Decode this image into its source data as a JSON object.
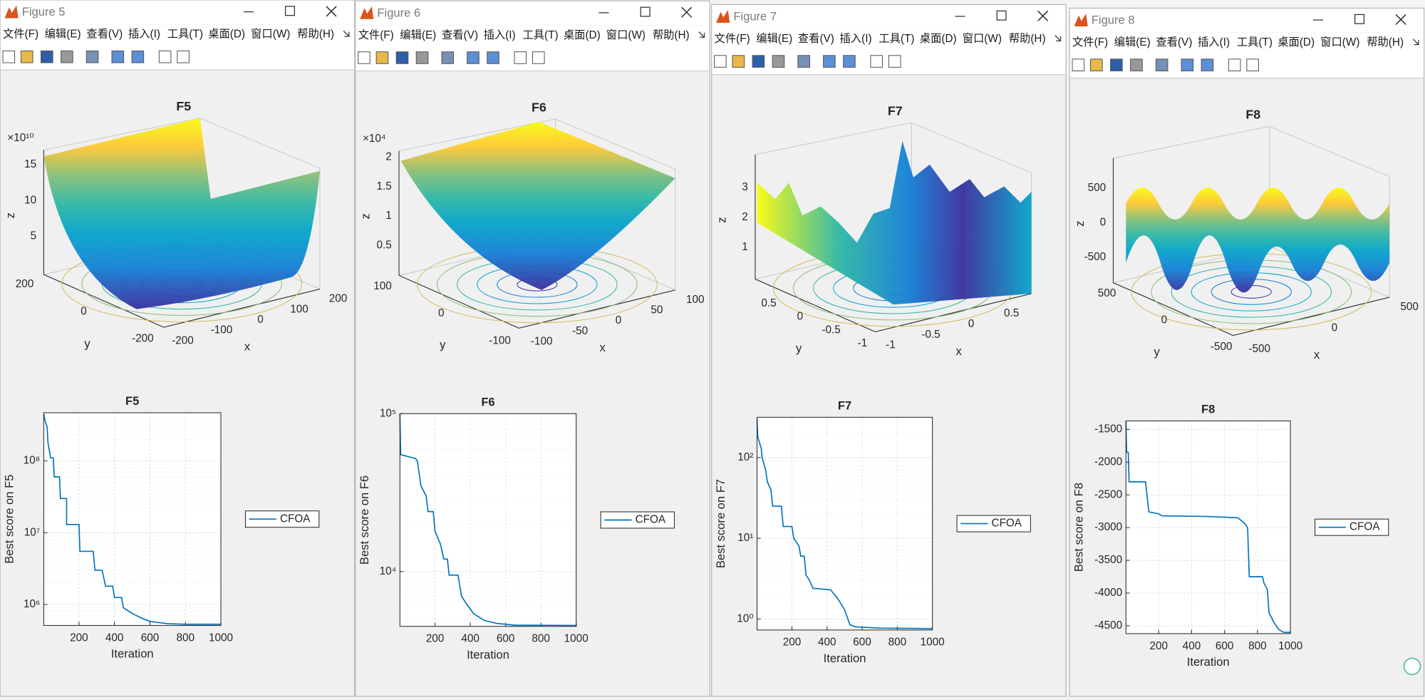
{
  "windows": [
    {
      "title": "Figure 5",
      "menu": [
        "文件(F)",
        "编辑(E)",
        "查看(V)",
        "插入(I)",
        "工具(T)",
        "桌面(D)",
        "窗口(W)",
        "帮助(H)"
      ],
      "surface": {
        "title": "F5",
        "multiplier": "×10¹⁰",
        "xlabel": "x",
        "ylabel": "y",
        "zlabel": "z",
        "xticks": [
          -200,
          -100,
          0,
          100,
          200
        ],
        "yticks": [
          -200,
          0,
          200
        ],
        "zticks": [
          5,
          10,
          15
        ]
      },
      "convergence": {
        "type": "line",
        "title": "F5",
        "xlabel": "Iteration",
        "ylabel": "Best score on F5",
        "log_y": true,
        "grid": true,
        "x": [
          1,
          10,
          20,
          25,
          40,
          55,
          60,
          90,
          95,
          130,
          130,
          200,
          205,
          280,
          290,
          330,
          350,
          390,
          400,
          440,
          450,
          500,
          550,
          600,
          700,
          800,
          1000
        ],
        "series": [
          {
            "name": "CFOA",
            "color": "#0072bd",
            "values": [
              450000000,
              350000000,
              300000000,
              180000000,
              110000000,
              110000000,
              60000000,
              60000000,
              30000000,
              30000000,
              13000000,
              13000000,
              5500000,
              5500000,
              3000000,
              3000000,
              1800000,
              1800000,
              1250000,
              1250000,
              900000,
              750000,
              650000,
              580000,
              540000,
              530000,
              530000
            ]
          }
        ],
        "xlim": [
          1,
          1000
        ],
        "ylim": [
          510000,
          470000000
        ],
        "xticks": [
          200,
          400,
          600,
          800,
          1000
        ],
        "yticks": [
          {
            "value": 1000000,
            "label": "10⁶"
          },
          {
            "value": 10000000,
            "label": "10⁷"
          },
          {
            "value": 100000000,
            "label": "10⁸"
          }
        ]
      }
    },
    {
      "title": "Figure 6",
      "menu": [
        "文件(F)",
        "编辑(E)",
        "查看(V)",
        "插入(I)",
        "工具(T)",
        "桌面(D)",
        "窗口(W)",
        "帮助(H)"
      ],
      "surface": {
        "title": "F6",
        "multiplier": "×10⁴",
        "xlabel": "x",
        "ylabel": "y",
        "zlabel": "z",
        "xticks": [
          -100,
          -50,
          0,
          50,
          100
        ],
        "yticks": [
          -100,
          0,
          100
        ],
        "zticks": [
          0.5,
          1,
          1.5,
          2
        ]
      },
      "convergence": {
        "type": "line",
        "title": "F6",
        "xlabel": "Iteration",
        "ylabel": "Best score on F6",
        "log_y": true,
        "grid": true,
        "x": [
          1,
          5,
          90,
          100,
          120,
          150,
          160,
          190,
          200,
          230,
          250,
          270,
          280,
          330,
          350,
          380,
          420,
          480,
          550,
          650,
          1000
        ],
        "series": [
          {
            "name": "CFOA",
            "color": "#0072bd",
            "values": [
              100000,
              55000,
              52000,
              50000,
              35000,
              30000,
              24000,
              24000,
              18000,
              15000,
              12000,
              12000,
              9500,
              9500,
              7000,
              6200,
              5400,
              4900,
              4700,
              4580,
              4560
            ]
          }
        ],
        "xlim": [
          1,
          1000
        ],
        "ylim": [
          4500,
          100000
        ],
        "xticks": [
          200,
          400,
          600,
          800,
          1000
        ],
        "yticks": [
          {
            "value": 10000,
            "label": "10⁴"
          },
          {
            "value": 100000,
            "label": "10⁵"
          }
        ]
      }
    },
    {
      "title": "Figure 7",
      "menu": [
        "文件(F)",
        "编辑(E)",
        "查看(V)",
        "插入(I)",
        "工具(T)",
        "桌面(D)",
        "窗口(W)",
        "帮助(H)"
      ],
      "surface": {
        "title": "F7",
        "xlabel": "x",
        "ylabel": "y",
        "zlabel": "z",
        "xticks": [
          -1,
          -0.5,
          0,
          0.5
        ],
        "yticks": [
          -1,
          -0.5,
          0,
          0.5
        ],
        "zticks": [
          1,
          2,
          3
        ]
      },
      "convergence": {
        "type": "line",
        "title": "F7",
        "xlabel": "Iteration",
        "ylabel": "Best score on F7",
        "log_y": true,
        "grid": true,
        "x": [
          1,
          5,
          25,
          30,
          50,
          60,
          80,
          90,
          140,
          150,
          200,
          210,
          240,
          250,
          270,
          280,
          300,
          320,
          420,
          460,
          500,
          530,
          560,
          700,
          1000
        ],
        "series": [
          {
            "name": "CFOA",
            "color": "#0072bd",
            "values": [
              300,
              180,
              130,
              100,
              70,
              50,
              40,
              25,
              25,
              14,
              14,
              10,
              8,
              6,
              6,
              3.5,
              3,
              2.4,
              2.3,
              1.8,
              1.3,
              0.85,
              0.8,
              0.77,
              0.76
            ]
          }
        ],
        "xlim": [
          1,
          1000
        ],
        "ylim": [
          0.73,
          316
        ],
        "xticks": [
          200,
          400,
          600,
          800,
          1000
        ],
        "yticks": [
          {
            "value": 1,
            "label": "10⁰"
          },
          {
            "value": 10,
            "label": "10¹"
          },
          {
            "value": 100,
            "label": "10²"
          }
        ]
      }
    },
    {
      "title": "Figure 8",
      "menu": [
        "文件(F)",
        "编辑(E)",
        "查看(V)",
        "插入(I)",
        "工具(T)",
        "桌面(D)",
        "窗口(W)",
        "帮助(H)"
      ],
      "surface": {
        "title": "F8",
        "xlabel": "x",
        "ylabel": "y",
        "zlabel": "z",
        "xticks": [
          -500,
          0,
          500
        ],
        "yticks": [
          -500,
          0,
          500
        ],
        "zticks": [
          500,
          0,
          -500
        ]
      },
      "convergence": {
        "type": "line",
        "title": "F8",
        "xlabel": "Iteration",
        "ylabel": "Best score on F8",
        "log_y": false,
        "grid": true,
        "x": [
          1,
          5,
          15,
          20,
          120,
          140,
          200,
          220,
          500,
          680,
          720,
          740,
          750,
          830,
          840,
          860,
          870,
          900,
          930,
          960,
          1000
        ],
        "series": [
          {
            "name": "CFOA",
            "color": "#0072bd",
            "values": [
              -1370,
              -1850,
              -1850,
              -2300,
              -2300,
              -2760,
              -2790,
              -2820,
              -2830,
              -2850,
              -2930,
              -3000,
              -3750,
              -3750,
              -3850,
              -3950,
              -4300,
              -4450,
              -4560,
              -4600,
              -4600
            ]
          }
        ],
        "xlim": [
          1,
          1000
        ],
        "ylim": [
          -4620,
          -1370
        ],
        "xticks": [
          200,
          400,
          600,
          800,
          1000
        ],
        "yticks": [
          -4500,
          -4000,
          -3500,
          -3000,
          -2500,
          -2000,
          -1500
        ]
      }
    }
  ]
}
